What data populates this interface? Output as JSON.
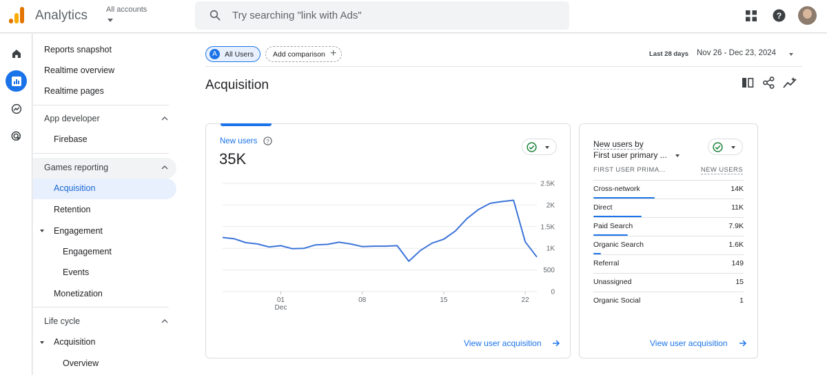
{
  "header": {
    "app_title": "Analytics",
    "account_label": "All accounts",
    "search_placeholder": "Try searching \"link with Ads\""
  },
  "sidebar": {
    "top_items": [
      "Reports snapshot",
      "Realtime overview",
      "Realtime pages"
    ],
    "app_developer": {
      "label": "App developer",
      "items": [
        "Firebase"
      ]
    },
    "games_reporting": {
      "label": "Games reporting",
      "acquisition": "Acquisition",
      "retention": "Retention",
      "engagement_group": "Engagement",
      "engagement": "Engagement",
      "events": "Events",
      "monetization": "Monetization"
    },
    "life_cycle": {
      "label": "Life cycle",
      "acquisition": "Acquisition",
      "overview": "Overview"
    }
  },
  "toolbar": {
    "audience_chip_letter": "A",
    "audience_chip": "All Users",
    "add_comparison": "Add comparison",
    "date_label": "Last 28 days",
    "date_range": "Nov 26 - Dec 23, 2024"
  },
  "page_title": "Acquisition",
  "card_new_users": {
    "metric": "New users",
    "value": "35K",
    "link": "View user acquisition"
  },
  "chart_data": {
    "type": "line",
    "title": "",
    "x_tick_labels": [
      "01",
      "Dec",
      "08",
      "15",
      "22"
    ],
    "y_ticks": [
      0,
      500,
      1000,
      1500,
      2000,
      2500
    ],
    "y_tick_labels": [
      "0",
      "500",
      "1K",
      "1.5K",
      "2K",
      "2.5K"
    ],
    "ylim": [
      0,
      2500
    ],
    "x_dates": [
      "Nov 26",
      "Nov 27",
      "Nov 28",
      "Nov 29",
      "Nov 30",
      "Dec 01",
      "Dec 02",
      "Dec 03",
      "Dec 04",
      "Dec 05",
      "Dec 06",
      "Dec 07",
      "Dec 08",
      "Dec 09",
      "Dec 10",
      "Dec 11",
      "Dec 12",
      "Dec 13",
      "Dec 14",
      "Dec 15",
      "Dec 16",
      "Dec 17",
      "Dec 18",
      "Dec 19",
      "Dec 20",
      "Dec 21",
      "Dec 22",
      "Dec 23"
    ],
    "series": [
      {
        "values": [
          1250,
          1220,
          1130,
          1100,
          1030,
          1060,
          990,
          1000,
          1080,
          1090,
          1140,
          1100,
          1040,
          1050,
          1050,
          1060,
          700,
          950,
          1120,
          1210,
          1400,
          1690,
          1900,
          2040,
          2080,
          2110,
          1150,
          800
        ],
        "color": "#3b73d9"
      }
    ],
    "grid": true
  },
  "card_channels": {
    "title_line1": "New users by",
    "title_line2": "First user primary ...",
    "col_dimension": "FIRST USER PRIMA...",
    "col_metric": "NEW USERS",
    "rows": [
      {
        "name": "Cross-network",
        "value": "14K",
        "share": 0.41
      },
      {
        "name": "Direct",
        "value": "11K",
        "share": 0.32
      },
      {
        "name": "Paid Search",
        "value": "7.9K",
        "share": 0.23
      },
      {
        "name": "Organic Search",
        "value": "1.6K",
        "share": 0.05
      },
      {
        "name": "Referral",
        "value": "149",
        "share": 0
      },
      {
        "name": "Unassigned",
        "value": "15",
        "share": 0
      },
      {
        "name": "Organic Social",
        "value": "1",
        "share": 0
      }
    ],
    "link": "View user acquisition"
  }
}
